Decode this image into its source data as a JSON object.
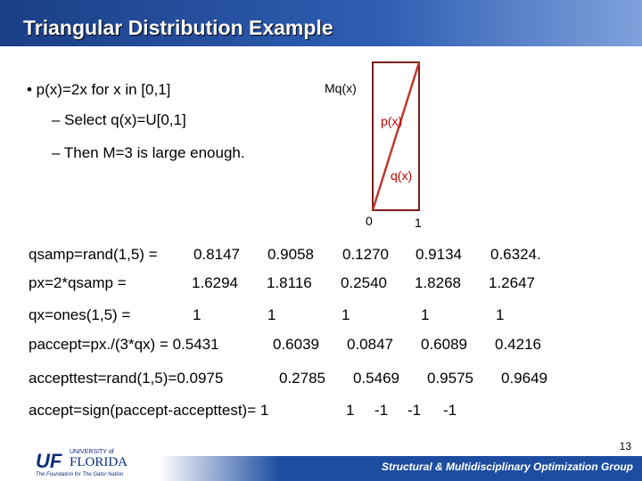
{
  "header": {
    "title": "Triangular Distribution Example"
  },
  "bullets": [
    {
      "text": "• p(x)=2x for x in [0,1]",
      "subs": [
        "– Select q(x)=U[0,1]",
        "– Then M=3 is large enough."
      ]
    }
  ],
  "diagram": {
    "mq_label": "Mq(x)",
    "p_label": "p(x)",
    "q_label": "q(x)",
    "zero": "0",
    "one": "1"
  },
  "rows": [
    [
      "qsamp=rand(1,5) =",
      "0.8147",
      "0.9058",
      "0.1270",
      "0.9134",
      "0.6324."
    ],
    [
      "px=2*qsamp =",
      "1.6294",
      "1.8116",
      "0.2540",
      "1.8268",
      "1.2647"
    ],
    [
      "qx=ones(1,5) =",
      "1",
      "1",
      "1",
      "1",
      "1"
    ],
    [
      "paccept=px./(3*qx) = 0.5431",
      "0.6039",
      "0.0847",
      "0.6089",
      "0.4216"
    ],
    [
      "accepttest=rand(1,5)=0.0975",
      "0.2785",
      "0.5469",
      "0.9575",
      "0.9649"
    ],
    [
      "accept=sign(paccept-accepttest)= 1",
      "1",
      "-1",
      "-1",
      "-1"
    ]
  ],
  "footer": {
    "page": "13",
    "group": "Structural & Multidisciplinary Optimization Group",
    "logo": {
      "uf": "UF",
      "university": "UNIVERSITY of",
      "florida": "FLORIDA",
      "tagline": "The Foundation for The Gator Nation"
    }
  }
}
